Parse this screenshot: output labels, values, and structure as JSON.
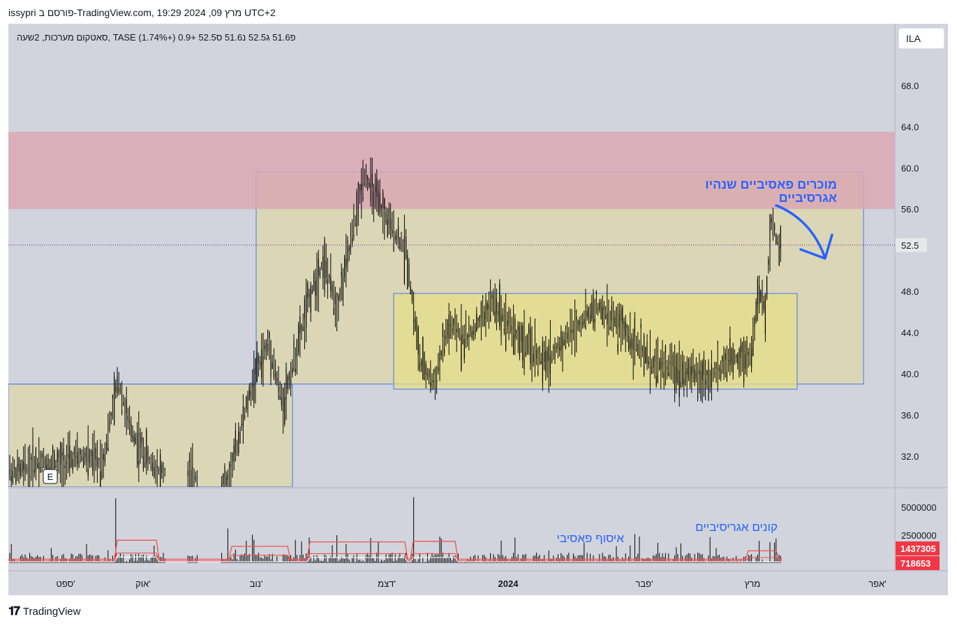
{
  "header": {
    "text": "issypri פורסם ב-TradingView.com, 19:29 2024 ,09 מרץ UTC+2"
  },
  "legend": {
    "text": "סאטקום מערכות, 2שעה, TASE  פ51.6  ג52.5  נ51.6  ס52.5  +0.9 (+1.74%)"
  },
  "currency_button": {
    "label": "ILA"
  },
  "brand": {
    "logo_icon": "tradingview-logo-icon",
    "name": "TradingView"
  },
  "annotations": {
    "sellers": [
      "מוכרים פאסיביים שנהיו",
      "אגרסיביים"
    ],
    "passive_accumulation": "איסוף פאסיבי",
    "aggressive_buyers": "קונים אגריסיביים",
    "earnings_marker": "E"
  },
  "colors": {
    "panel_bg": "#d1d4dc",
    "red_zone": "#d9a8b4",
    "yellow_zone": "#ddd7ad",
    "inner_box": "#e6de8a",
    "box_border": "#5b86e5",
    "annotation_text": "#2962ff",
    "candle": "#000000",
    "vol_red_line": "#ef5350",
    "last_price_bg": "#e8e8e8",
    "vol_label_bg": "#f23645"
  },
  "chart_data": {
    "type": "candlestick",
    "price_axis": {
      "range": [
        29.0,
        74.0
      ],
      "ticks": [
        32.0,
        36.0,
        40.0,
        44.0,
        48.0,
        52.0,
        56.0,
        60.0,
        64.0,
        68.0,
        72.0
      ]
    },
    "price_tick_labels": [
      "72.0",
      "68.0",
      "64.0",
      "60.0",
      "56.0",
      "52.0",
      "48.0",
      "44.0",
      "40.0",
      "36.0",
      "32.0"
    ],
    "last_price": 52.5,
    "last_price_label": "52.5",
    "time_labels": [
      "ספט'",
      "אוק'",
      "נוב'",
      "דצמ'",
      "2024",
      "פבר'",
      "מרץ",
      "אפר'"
    ],
    "volume_axis": {
      "range": [
        0,
        6500000
      ],
      "ticks": [
        2500000,
        5000000
      ]
    },
    "volume_tick_labels": [
      "5000000",
      "2500000"
    ],
    "volume_current_labels": [
      "1437305",
      "718653"
    ],
    "zones": [
      {
        "name": "red-resistance-zone",
        "from": 56.0,
        "to": 63.5,
        "start": "ספט'",
        "end": "right-edge"
      },
      {
        "name": "yellow-range-outer",
        "from": 39.0,
        "to": 59.6,
        "start": "נוב'",
        "end": "מרץ"
      },
      {
        "name": "yellow-range-inner",
        "from": 38.5,
        "to": 47.8,
        "start": "דצמ'",
        "end": "מרץ"
      },
      {
        "name": "yellow-range-left",
        "from": 29.0,
        "to": 39.0,
        "start": "ספט'",
        "end": "נוב'"
      }
    ],
    "price_path": [
      [
        "ספט'",
        30.5
      ],
      [
        "ספט'",
        31.5
      ],
      [
        "ספט'",
        31.2
      ],
      [
        "ספט'",
        32.0
      ],
      [
        "ספט'",
        31.3
      ],
      [
        "אוק'",
        39.5
      ],
      [
        "אוק'",
        35.0
      ],
      [
        "אוק'",
        33.0
      ],
      [
        "אוק'",
        31.5
      ],
      [
        "אוק'",
        30.5
      ],
      [
        "נוב'",
        29.5
      ],
      [
        "נוב'",
        35.0
      ],
      [
        "נוב'",
        40.0
      ],
      [
        "נוב'",
        43.0
      ],
      [
        "נוב'",
        37.0
      ],
      [
        "נוב'",
        42.0
      ],
      [
        "נוב'",
        47.5
      ],
      [
        "נוב'",
        51.0
      ],
      [
        "נוב'",
        46.5
      ],
      [
        "נוב'",
        52.5
      ],
      [
        "דצמ'",
        59.5
      ],
      [
        "דצמ'",
        56.5
      ],
      [
        "דצמ'",
        54.0
      ],
      [
        "דצמ'",
        52.0
      ],
      [
        "דצמ'",
        41.0
      ],
      [
        "דצמ'",
        39.0
      ],
      [
        "דצמ'",
        44.5
      ],
      [
        "2024",
        43.5
      ],
      [
        "2024",
        47.0
      ],
      [
        "2024",
        43.5
      ],
      [
        "2024",
        41.0
      ],
      [
        "2024",
        44.0
      ],
      [
        "2024",
        46.5
      ],
      [
        "פבר'",
        44.5
      ],
      [
        "פבר'",
        41.0
      ],
      [
        "פבר'",
        40.5
      ],
      [
        "פבר'",
        39.5
      ],
      [
        "פבר'",
        41.5
      ],
      [
        "מרץ",
        42.0
      ],
      [
        "מרץ",
        48.0
      ],
      [
        "מרץ",
        46.0
      ],
      [
        "מרץ",
        55.0
      ],
      [
        "מרץ",
        52.5
      ]
    ]
  }
}
